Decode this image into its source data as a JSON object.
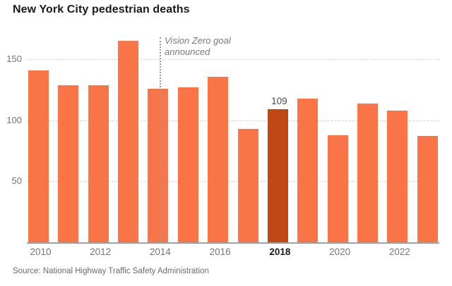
{
  "header": {
    "title": "New York City pedestrian deaths"
  },
  "footer": {
    "source": "Source: National Highway Traffic Safety Administration"
  },
  "annotation": {
    "line1": "Vision Zero goal",
    "line2": "announced"
  },
  "colors": {
    "bar": "#f97548",
    "bar_highlight": "#bf4815",
    "grid": "#d4d4d4",
    "axis_line": "#a0a0a0",
    "refline": "#9a9a9a",
    "tick_label": "#757575",
    "tick_label_highlight": "#1a1a1a",
    "value_label": "#4a4a4a",
    "title": "#1a1a1a",
    "annotation_text": "#7a7a7a",
    "source_text": "#6b6b6b"
  },
  "chart_data": {
    "type": "bar",
    "title": "New York City pedestrian deaths",
    "categories": [
      2010,
      2011,
      2012,
      2013,
      2014,
      2015,
      2016,
      2017,
      2018,
      2019,
      2020,
      2021,
      2022,
      2023
    ],
    "values": [
      141,
      129,
      129,
      165,
      126,
      127,
      136,
      93,
      109,
      118,
      88,
      114,
      108,
      87
    ],
    "highlight_category": 2018,
    "value_label": {
      "category": 2018,
      "text": "109"
    },
    "xticks": [
      2010,
      2012,
      2014,
      2016,
      2018,
      2020,
      2022
    ],
    "yticks": [
      50,
      100,
      150
    ],
    "ylim": [
      0,
      170
    ],
    "grid": "horizontal-dashed",
    "legend": "none",
    "xlabel": "",
    "ylabel": "",
    "annotation": {
      "text": "Vision Zero goal announced",
      "at_category": 2014
    }
  }
}
